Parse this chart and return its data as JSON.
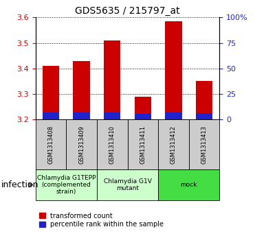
{
  "title": "GDS5635 / 215797_at",
  "samples": [
    "GSM1313408",
    "GSM1313409",
    "GSM1313410",
    "GSM1313411",
    "GSM1313412",
    "GSM1313413"
  ],
  "transformed_counts": [
    3.41,
    3.43,
    3.51,
    3.29,
    3.585,
    3.35
  ],
  "percentile_tops": [
    3.228,
    3.228,
    3.228,
    3.222,
    3.228,
    3.225
  ],
  "bar_base": 3.2,
  "ylim_left": [
    3.2,
    3.6
  ],
  "ylim_right": [
    0,
    100
  ],
  "yticks_left": [
    3.2,
    3.3,
    3.4,
    3.5,
    3.6
  ],
  "yticks_right": [
    0,
    25,
    50,
    75,
    100
  ],
  "ytick_labels_right": [
    "0",
    "25",
    "50",
    "75",
    "100%"
  ],
  "red_color": "#cc0000",
  "blue_color": "#2222cc",
  "bar_width": 0.55,
  "group_boundaries": [
    {
      "start": 0,
      "end": 1,
      "label": "Chlamydia G1TEPP\n(complemented\nstrain)",
      "color": "#ccffcc"
    },
    {
      "start": 2,
      "end": 3,
      "label": "Chlamydia G1V\nmutant",
      "color": "#ccffcc"
    },
    {
      "start": 4,
      "end": 5,
      "label": "mock",
      "color": "#44dd44"
    }
  ],
  "infection_label": "infection",
  "legend_red": "transformed count",
  "legend_blue": "percentile rank within the sample",
  "tick_color_left": "#cc0000",
  "tick_color_right": "#2222cc",
  "sample_box_color": "#cccccc",
  "title_fontsize": 10,
  "tick_fontsize": 8,
  "sample_fontsize": 6,
  "group_fontsize": 6.5,
  "legend_fontsize": 7,
  "infection_fontsize": 9
}
